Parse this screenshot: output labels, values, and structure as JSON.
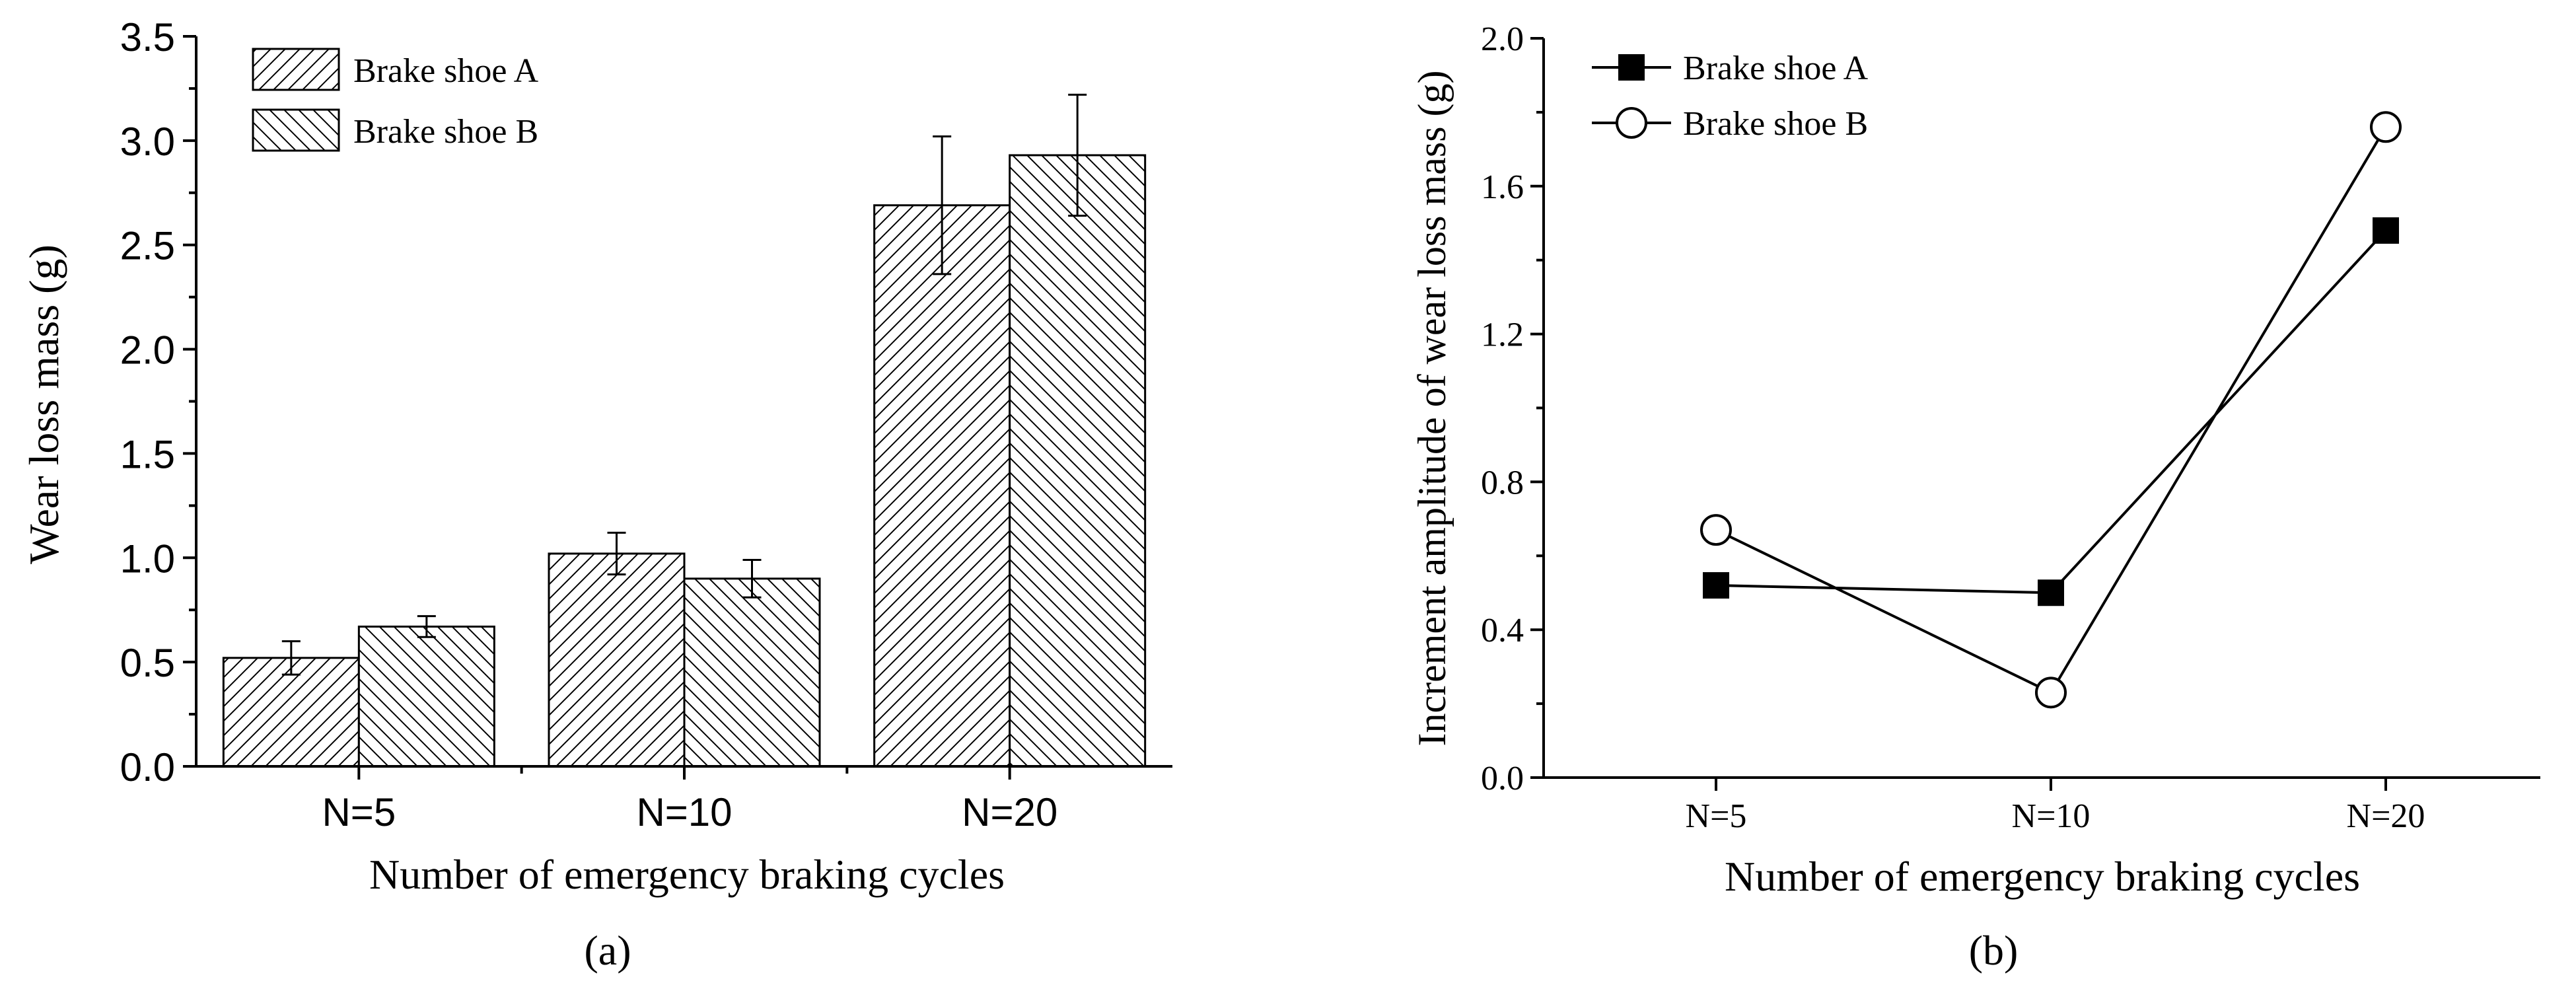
{
  "chart_data": [
    {
      "panel": "(a)",
      "type": "bar",
      "xlabel": "Number of emergency braking cycles",
      "ylabel": "Wear loss mass (g)",
      "ylim": [
        0,
        3.5
      ],
      "yticks": [
        "0.0",
        "0.5",
        "1.0",
        "1.5",
        "2.0",
        "2.5",
        "3.0",
        "3.5"
      ],
      "categories": [
        "N=5",
        "N=10",
        "N=20"
      ],
      "legend_position": "top-left",
      "series": [
        {
          "name": "Brake shoe A",
          "values": [
            0.52,
            1.02,
            2.69
          ],
          "errors": [
            0.08,
            0.1,
            0.33
          ],
          "hatch": "forward-diagonal"
        },
        {
          "name": "Brake shoe B",
          "values": [
            0.67,
            0.9,
            2.93
          ],
          "errors": [
            0.05,
            0.09,
            0.29
          ],
          "hatch": "back-diagonal"
        }
      ]
    },
    {
      "panel": "(b)",
      "type": "line",
      "xlabel": "Number of emergency braking cycles",
      "ylabel": "Increment amplitude of wear loss mass (g)",
      "ylim": [
        0,
        2.0
      ],
      "yticks": [
        "0.0",
        "0.4",
        "0.8",
        "1.2",
        "1.6",
        "2.0"
      ],
      "categories": [
        "N=5",
        "N=10",
        "N=20"
      ],
      "legend_position": "top-left",
      "series": [
        {
          "name": "Brake shoe A",
          "values": [
            0.52,
            0.5,
            1.48
          ],
          "marker": "filled-square"
        },
        {
          "name": "Brake shoe B",
          "values": [
            0.67,
            0.23,
            1.76
          ],
          "marker": "open-circle"
        }
      ]
    }
  ]
}
